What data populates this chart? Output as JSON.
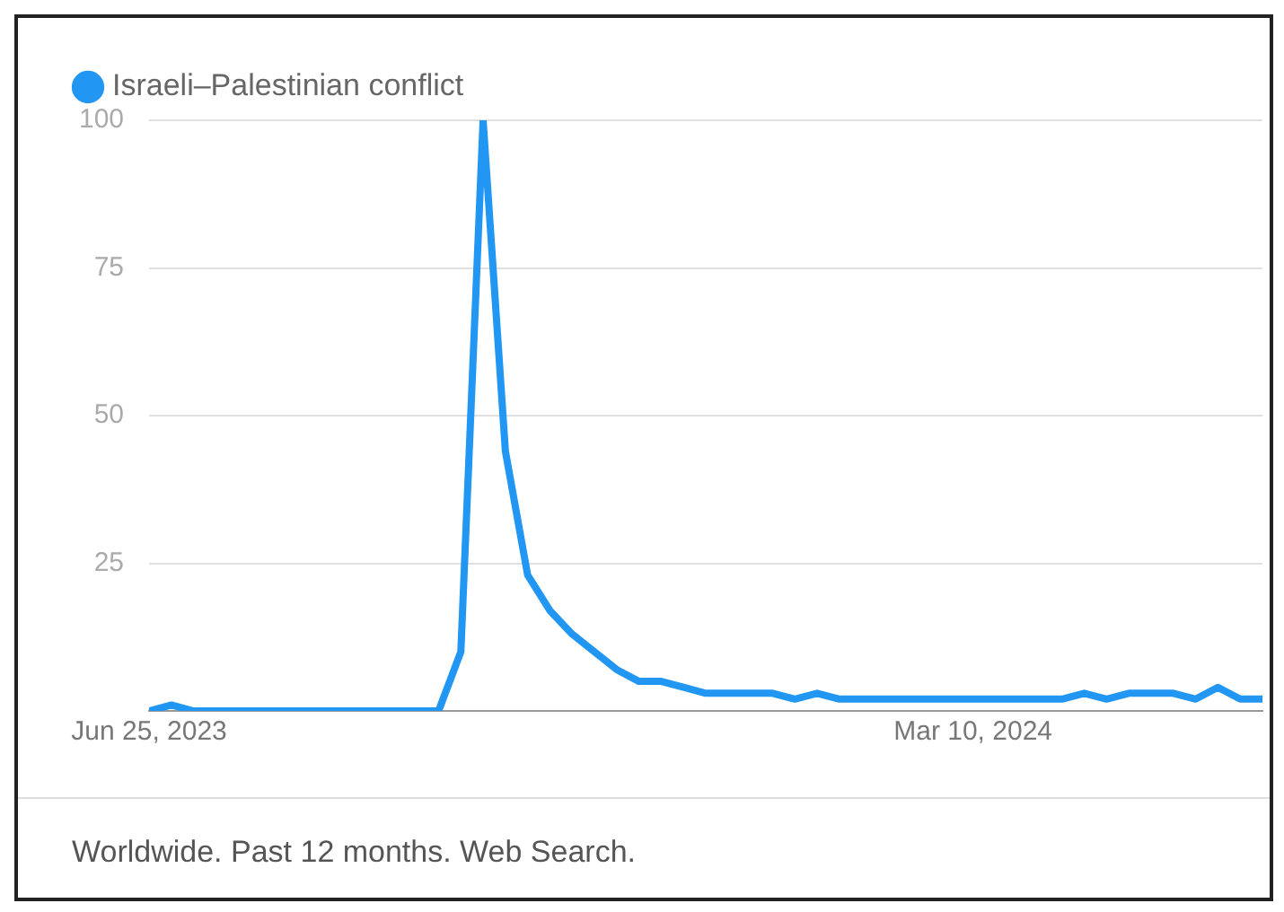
{
  "chart_data": {
    "type": "line",
    "x": [
      "2023-06-25",
      "2023-07-02",
      "2023-07-09",
      "2023-07-16",
      "2023-07-23",
      "2023-07-30",
      "2023-08-06",
      "2023-08-13",
      "2023-08-20",
      "2023-08-27",
      "2023-09-03",
      "2023-09-10",
      "2023-09-17",
      "2023-09-24",
      "2023-10-01",
      "2023-10-08",
      "2023-10-15",
      "2023-10-22",
      "2023-10-29",
      "2023-11-05",
      "2023-11-12",
      "2023-11-19",
      "2023-11-26",
      "2023-12-03",
      "2023-12-10",
      "2023-12-17",
      "2023-12-24",
      "2023-12-31",
      "2024-01-07",
      "2024-01-14",
      "2024-01-21",
      "2024-01-28",
      "2024-02-04",
      "2024-02-11",
      "2024-02-18",
      "2024-02-25",
      "2024-03-03",
      "2024-03-10",
      "2024-03-17",
      "2024-03-24",
      "2024-03-31",
      "2024-04-07",
      "2024-04-14",
      "2024-04-21",
      "2024-04-28",
      "2024-05-05",
      "2024-05-12",
      "2024-05-19",
      "2024-05-26",
      "2024-06-02",
      "2024-06-09"
    ],
    "series": [
      {
        "name": "Israeli–Palestinian conflict",
        "color": "#2196f3",
        "values": [
          0,
          1,
          0,
          0,
          0,
          0,
          0,
          0,
          0,
          0,
          0,
          0,
          0,
          0,
          10,
          100,
          44,
          23,
          17,
          13,
          10,
          7,
          5,
          5,
          4,
          3,
          3,
          3,
          3,
          2,
          3,
          2,
          2,
          2,
          2,
          2,
          2,
          2,
          2,
          2,
          2,
          2,
          3,
          2,
          3,
          3,
          3,
          2,
          4,
          2,
          2
        ]
      }
    ],
    "xlim": [
      "2023-06-25",
      "2024-06-09"
    ],
    "xticks": [
      {
        "value": "2023-06-25",
        "label": "Jun 25, 2023"
      },
      {
        "value": "2024-03-10",
        "label": "Mar 10, 2024"
      }
    ],
    "ylim": [
      0,
      100
    ],
    "yticks": [
      {
        "value": 0,
        "label": null
      },
      25,
      50,
      75,
      100
    ],
    "grid": "y",
    "legend": "top left",
    "marker": "none",
    "line_style": "solid",
    "annotations": [
      "Worldwide. Past 12 months. Web Search."
    ]
  }
}
